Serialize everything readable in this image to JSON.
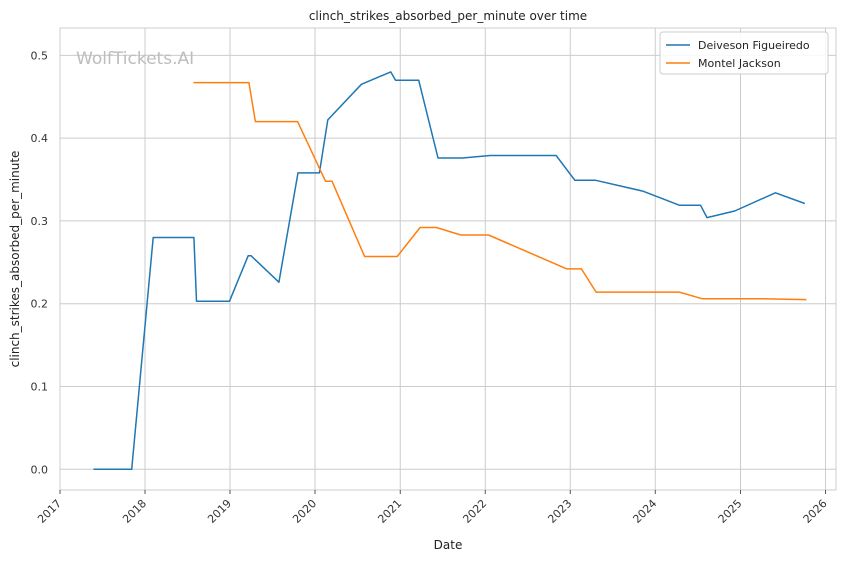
{
  "chart_data": {
    "type": "line",
    "title": "clinch_strikes_absorbed_per_minute over time",
    "xlabel": "Date",
    "ylabel": "clinch_strikes_absorbed_per_minute",
    "watermark": "WolfTickets.AI",
    "xlim": [
      "2017-01-01",
      "2026-02-15"
    ],
    "ylim": [
      -0.025,
      0.533
    ],
    "x_ticks": [
      "2017",
      "2018",
      "2019",
      "2020",
      "2021",
      "2022",
      "2023",
      "2024",
      "2025",
      "2026"
    ],
    "y_ticks": [
      0.0,
      0.1,
      0.2,
      0.3,
      0.4,
      0.5
    ],
    "y_tick_labels": [
      "0.0",
      "0.1",
      "0.2",
      "0.3",
      "0.4",
      "0.5"
    ],
    "grid": true,
    "legend_position": "top-right",
    "series": [
      {
        "name": "Deiveson Figueiredo",
        "color": "#1f77b4",
        "points": [
          [
            "2017-05-25",
            0.0
          ],
          [
            "2017-11-05",
            0.0
          ],
          [
            "2018-02-05",
            0.28
          ],
          [
            "2018-07-30",
            0.28
          ],
          [
            "2018-08-10",
            0.203
          ],
          [
            "2018-12-30",
            0.203
          ],
          [
            "2019-03-20",
            0.258
          ],
          [
            "2019-04-01",
            0.258
          ],
          [
            "2019-07-30",
            0.226
          ],
          [
            "2019-10-20",
            0.358
          ],
          [
            "2020-01-20",
            0.358
          ],
          [
            "2020-02-25",
            0.422
          ],
          [
            "2020-07-18",
            0.465
          ],
          [
            "2020-11-21",
            0.48
          ],
          [
            "2020-12-12",
            0.47
          ],
          [
            "2021-03-21",
            0.47
          ],
          [
            "2021-06-12",
            0.376
          ],
          [
            "2021-09-25",
            0.376
          ],
          [
            "2022-01-22",
            0.379
          ],
          [
            "2022-11-01",
            0.379
          ],
          [
            "2023-01-21",
            0.349
          ],
          [
            "2023-04-20",
            0.349
          ],
          [
            "2023-11-08",
            0.336
          ],
          [
            "2024-04-13",
            0.319
          ],
          [
            "2024-07-13",
            0.319
          ],
          [
            "2024-08-10",
            0.304
          ],
          [
            "2024-12-07",
            0.312
          ],
          [
            "2025-05-31",
            0.334
          ],
          [
            "2025-10-04",
            0.321
          ]
        ]
      },
      {
        "name": "Montel Jackson",
        "color": "#ff7f0e",
        "points": [
          [
            "2018-07-28",
            0.467
          ],
          [
            "2019-03-23",
            0.467
          ],
          [
            "2019-04-20",
            0.42
          ],
          [
            "2019-10-18",
            0.42
          ],
          [
            "2020-02-15",
            0.348
          ],
          [
            "2020-03-14",
            0.348
          ],
          [
            "2020-08-01",
            0.257
          ],
          [
            "2020-12-19",
            0.257
          ],
          [
            "2021-03-27",
            0.292
          ],
          [
            "2021-06-05",
            0.292
          ],
          [
            "2021-09-18",
            0.283
          ],
          [
            "2022-01-15",
            0.283
          ],
          [
            "2022-12-17",
            0.242
          ],
          [
            "2023-02-18",
            0.242
          ],
          [
            "2023-04-22",
            0.214
          ],
          [
            "2024-04-13",
            0.214
          ],
          [
            "2024-07-20",
            0.206
          ],
          [
            "2025-03-15",
            0.206
          ],
          [
            "2025-10-11",
            0.205
          ]
        ]
      }
    ]
  }
}
